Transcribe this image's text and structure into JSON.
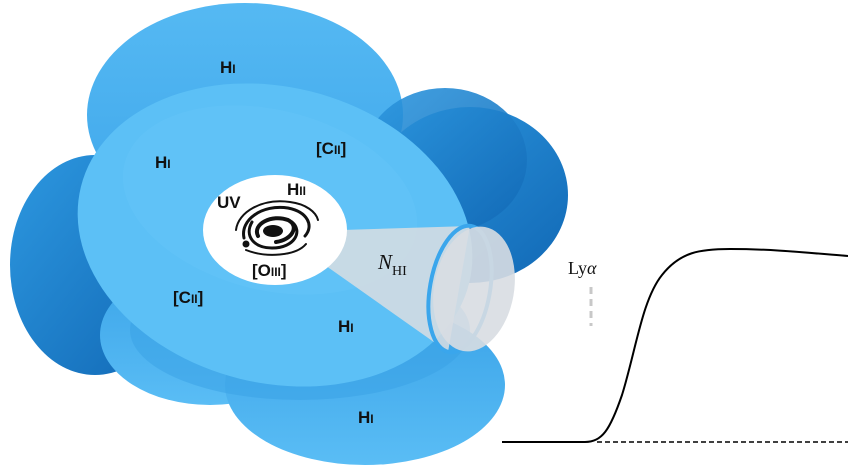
{
  "regions": {
    "hi_label": "H",
    "hi_suffix": "I",
    "cii_label_open": "[C",
    "cii_suffix": "II",
    "cii_label_close": "]",
    "hii_label": "H",
    "hii_suffix": "II",
    "oiii_label_open": "[O",
    "oiii_suffix": "III",
    "oiii_label_close": "]",
    "uv_label": "UV"
  },
  "sightline": {
    "column_symbol": "N",
    "column_subscript": "HI"
  },
  "spectrum": {
    "line_prefix": "Ly",
    "line_symbol": "α"
  },
  "colors": {
    "cloud_outer": "#4fb6f1",
    "cloud_inner": "#5fc0f7",
    "cloud_shadow": "#1979c4",
    "cone_fill": "#d8dde2",
    "cone_rim": "#3aa6ec",
    "dashed_marker": "#c8c8c8",
    "curve": "#000000"
  }
}
